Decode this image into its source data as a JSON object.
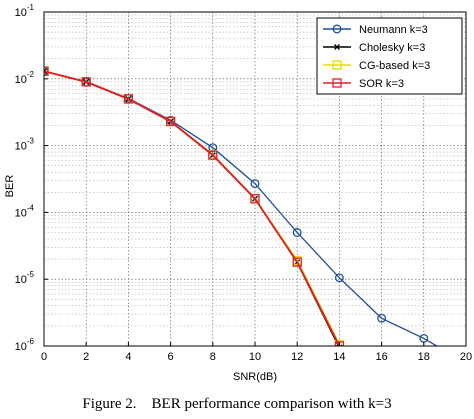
{
  "chart_data": {
    "type": "line",
    "xlabel": "SNR(dB)",
    "ylabel": "BER",
    "xlim": [
      0,
      20
    ],
    "ylim": [
      1e-06,
      0.1
    ],
    "yscale": "log",
    "grid": true,
    "legend_position": "top-right",
    "x_ticks": [
      "0",
      "2",
      "4",
      "6",
      "8",
      "10",
      "12",
      "14",
      "16",
      "18",
      "20"
    ],
    "y_ticks": [
      {
        "base": "10",
        "exp": "-1"
      },
      {
        "base": "10",
        "exp": "-2"
      },
      {
        "base": "10",
        "exp": "-3"
      },
      {
        "base": "10",
        "exp": "-4"
      },
      {
        "base": "10",
        "exp": "-5"
      },
      {
        "base": "10",
        "exp": "-6"
      }
    ],
    "series": [
      {
        "name": "Neumann k=3",
        "color": "#1f4e9e",
        "marker": "circle",
        "x": [
          0,
          2,
          4,
          6,
          8,
          10,
          12,
          14,
          16,
          18,
          19
        ],
        "y": [
          0.013,
          0.009,
          0.0051,
          0.0024,
          0.00093,
          0.00027,
          5e-05,
          1.05e-05,
          2.6e-06,
          1.3e-06,
          8.5e-07
        ]
      },
      {
        "name": "Cholesky k=3",
        "color": "#000000",
        "marker": "x",
        "x": [
          0,
          2,
          4,
          6,
          8,
          10,
          12,
          14
        ],
        "y": [
          0.013,
          0.009,
          0.005,
          0.0023,
          0.00072,
          0.00016,
          1.8e-05,
          9.5e-07
        ]
      },
      {
        "name": "CG-based k=3",
        "color": "#e0e000",
        "marker": "square",
        "x": [
          0,
          2,
          4,
          6,
          8,
          10,
          12,
          14
        ],
        "y": [
          0.013,
          0.009,
          0.005,
          0.0023,
          0.00073,
          0.00016,
          1.9e-05,
          1.05e-06
        ]
      },
      {
        "name": "SOR k=3",
        "color": "#e0202a",
        "marker": "square",
        "x": [
          0,
          2,
          4,
          6,
          8,
          10,
          12,
          14
        ],
        "y": [
          0.013,
          0.009,
          0.005,
          0.0023,
          0.00072,
          0.00016,
          1.8e-05,
          1e-06
        ]
      }
    ]
  },
  "caption": {
    "label": "Figure 2.",
    "text": "BER performance comparison with k=3"
  }
}
